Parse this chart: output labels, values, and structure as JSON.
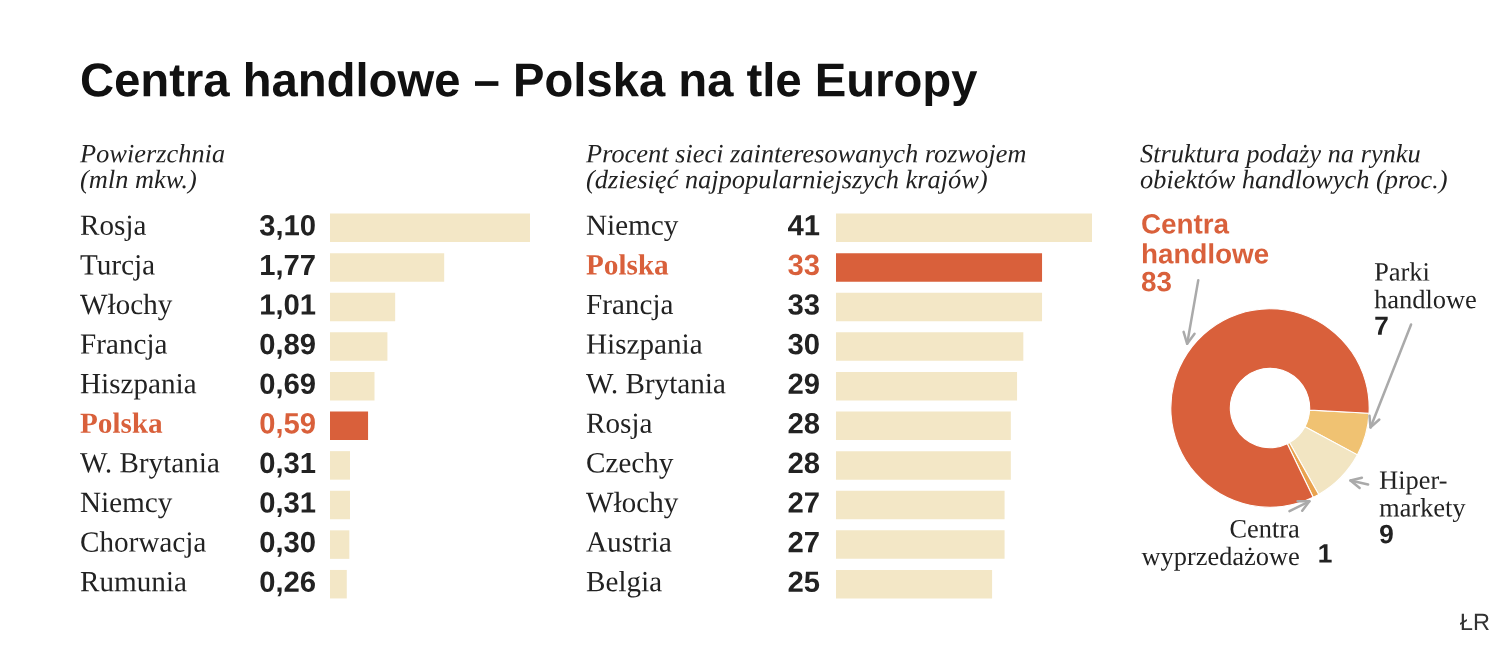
{
  "chart_data": [
    {
      "type": "bar",
      "orientation": "horizontal",
      "title": "Centra handlowe – Polska na tle Europy",
      "subtitle": "Powierzchnia\n(mln mkw.)",
      "categories": [
        "Rosja",
        "Turcja",
        "Włochy",
        "Francja",
        "Hiszpania",
        "Polska",
        "W. Brytania",
        "Niemcy",
        "Chorwacja",
        "Rumunia"
      ],
      "values": [
        3.1,
        1.77,
        1.01,
        0.89,
        0.69,
        0.59,
        0.31,
        0.31,
        0.3,
        0.26
      ],
      "value_labels": [
        "3,10",
        "1,77",
        "1,01",
        "0,89",
        "0,69",
        "0,59",
        "0,31",
        "0,31",
        "0,30",
        "0,26"
      ],
      "color": "#f3e7c6",
      "colors": [
        "#f3e7c6",
        "#f3e7c6",
        "#f3e7c6",
        "#f3e7c6",
        "#f3e7c6",
        "#d9603b",
        "#f3e7c6",
        "#f3e7c6",
        "#f3e7c6",
        "#f3e7c6"
      ]
    },
    {
      "type": "bar",
      "orientation": "horizontal",
      "subtitle": "Procent sieci zainteresowanych rozwojem\n(dziesięć najpopularniejszych krajów)",
      "categories": [
        "Niemcy",
        "Polska",
        "Francja",
        "Hiszpania",
        "W. Brytania",
        "Rosja",
        "Czechy",
        "Włochy",
        "Austria",
        "Belgia"
      ],
      "values": [
        41,
        33,
        33,
        30,
        29,
        28,
        28,
        27,
        27,
        25
      ],
      "data_labels": true,
      "color": "#f3e7c6",
      "colors": [
        "#f3e7c6",
        "#d9603b",
        "#f3e7c6",
        "#f3e7c6",
        "#f3e7c6",
        "#f3e7c6",
        "#f3e7c6",
        "#f3e7c6",
        "#f3e7c6",
        "#f3e7c6"
      ]
    },
    {
      "type": "donut",
      "subtitle": "Struktura podaży na rynku\nobiektów handlowych (proc.)",
      "categories": [
        "Parki\nhandlowe",
        "Hiper-\nmarkety",
        "Centra\nwyprzedażowe",
        "Centra\nhandlowe"
      ],
      "values": [
        7,
        9,
        1,
        83
      ],
      "data_labels": true,
      "colors": [
        "#f0c272",
        "#f2e5c2",
        "#e9a24e",
        "#d9603b"
      ],
      "annotations": [
        "ŁR"
      ]
    }
  ]
}
